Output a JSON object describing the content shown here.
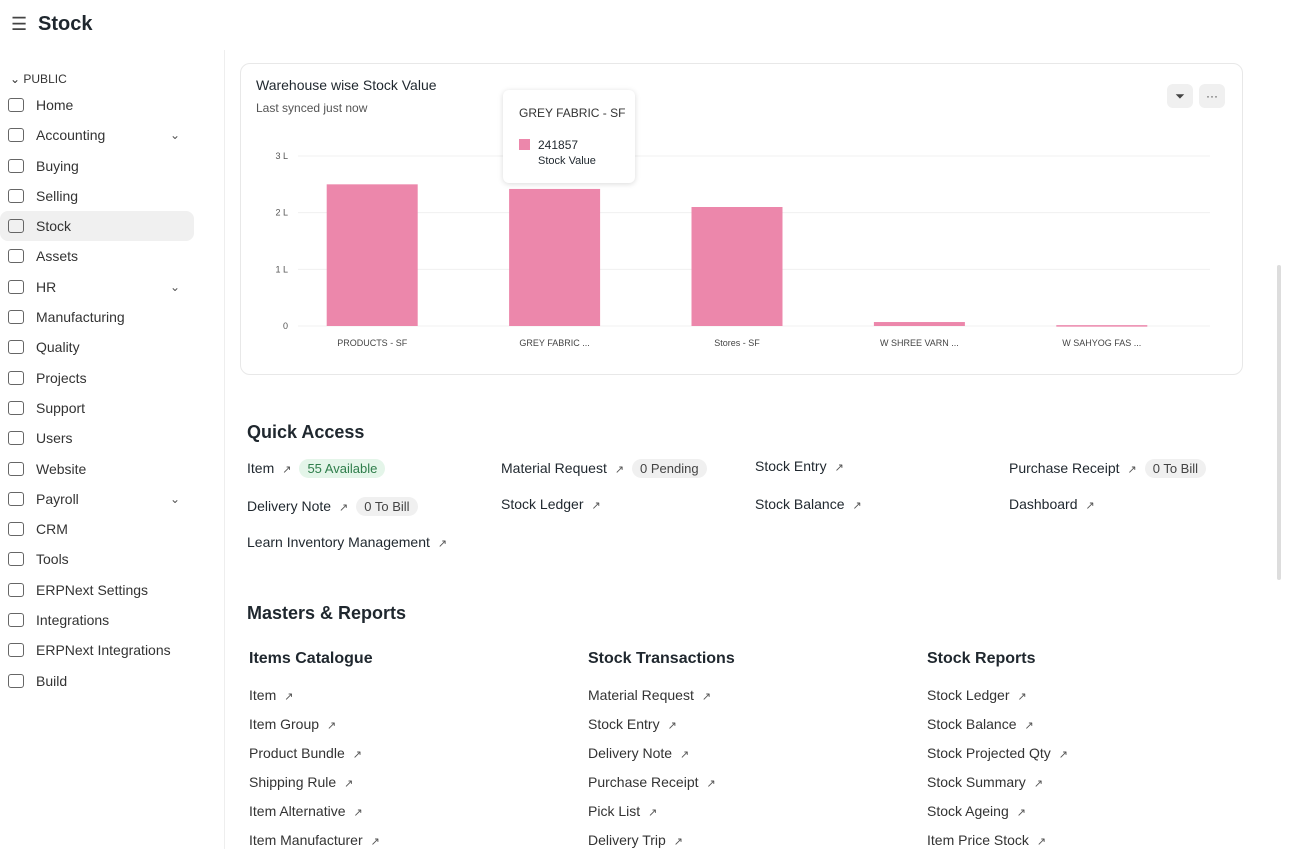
{
  "header": {
    "title": "Stock"
  },
  "sidebar": {
    "section": "PUBLIC",
    "items": [
      {
        "label": "Home",
        "icon": "tools-icon"
      },
      {
        "label": "Accounting",
        "icon": "money-icon",
        "expand": true
      },
      {
        "label": "Buying",
        "icon": "bag-icon"
      },
      {
        "label": "Selling",
        "icon": "card-icon"
      },
      {
        "label": "Stock",
        "icon": "box-icon",
        "active": true
      },
      {
        "label": "Assets",
        "icon": "basket-icon"
      },
      {
        "label": "HR",
        "icon": "briefcase-icon",
        "expand": true
      },
      {
        "label": "Manufacturing",
        "icon": "building-icon"
      },
      {
        "label": "Quality",
        "icon": "shield-icon"
      },
      {
        "label": "Projects",
        "icon": "folder-icon"
      },
      {
        "label": "Support",
        "icon": "headset-icon"
      },
      {
        "label": "Users",
        "icon": "users-icon"
      },
      {
        "label": "Website",
        "icon": "browser-icon"
      },
      {
        "label": "Payroll",
        "icon": "payroll-icon",
        "expand": true
      },
      {
        "label": "CRM",
        "icon": "pie-icon"
      },
      {
        "label": "Tools",
        "icon": "tools-icon"
      },
      {
        "label": "ERPNext Settings",
        "icon": "settings-icon"
      },
      {
        "label": "Integrations",
        "icon": "plug-icon"
      },
      {
        "label": "ERPNext Integrations",
        "icon": "plug-icon"
      },
      {
        "label": "Build",
        "icon": "tools-icon"
      }
    ]
  },
  "card": {
    "title": "Warehouse wise Stock Value",
    "subtitle": "Last synced just now",
    "filter_icon": "filter-icon",
    "menu_label": "···"
  },
  "tooltip": {
    "title": "GREY FABRIC - SF",
    "value": "241857",
    "label": "Stock Value"
  },
  "chart_data": {
    "type": "bar",
    "categories": [
      "PRODUCTS - SF",
      "GREY FABRIC ...",
      "Stores - SF",
      "W SHREE VARN ...",
      "W SAHYOG FAS ..."
    ],
    "series": [
      {
        "name": "Stock Value",
        "values": [
          250000,
          241857,
          210000,
          7000,
          1500
        ]
      }
    ],
    "ylim": [
      0,
      300000
    ],
    "yticks": [
      {
        "v": 0,
        "label": "0"
      },
      {
        "v": 100000,
        "label": "1 L"
      },
      {
        "v": 200000,
        "label": "2 L"
      },
      {
        "v": 300000,
        "label": "3 L"
      }
    ],
    "color": "#ec87ab",
    "grid": true
  },
  "quick": {
    "title": "Quick Access",
    "items": [
      {
        "label": "Item",
        "badge": "55 Available",
        "green": true
      },
      {
        "label": "Material Request",
        "badge": "0 Pending"
      },
      {
        "label": "Stock Entry"
      },
      {
        "label": "Purchase Receipt",
        "badge": "0 To Bill"
      },
      {
        "label": "Delivery Note",
        "badge": "0 To Bill"
      },
      {
        "label": "Stock Ledger"
      },
      {
        "label": "Stock Balance"
      },
      {
        "label": "Dashboard"
      },
      {
        "label": "Learn Inventory Management"
      }
    ]
  },
  "masters": {
    "title": "Masters & Reports",
    "columns": [
      {
        "title": "Items Catalogue",
        "links": [
          "Item",
          "Item Group",
          "Product Bundle",
          "Shipping Rule",
          "Item Alternative",
          "Item Manufacturer"
        ]
      },
      {
        "title": "Stock Transactions",
        "links": [
          "Material Request",
          "Stock Entry",
          "Delivery Note",
          "Purchase Receipt",
          "Pick List",
          "Delivery Trip"
        ]
      },
      {
        "title": "Stock Reports",
        "links": [
          "Stock Ledger",
          "Stock Balance",
          "Stock Projected Qty",
          "Stock Summary",
          "Stock Ageing",
          "Item Price Stock"
        ]
      }
    ]
  }
}
